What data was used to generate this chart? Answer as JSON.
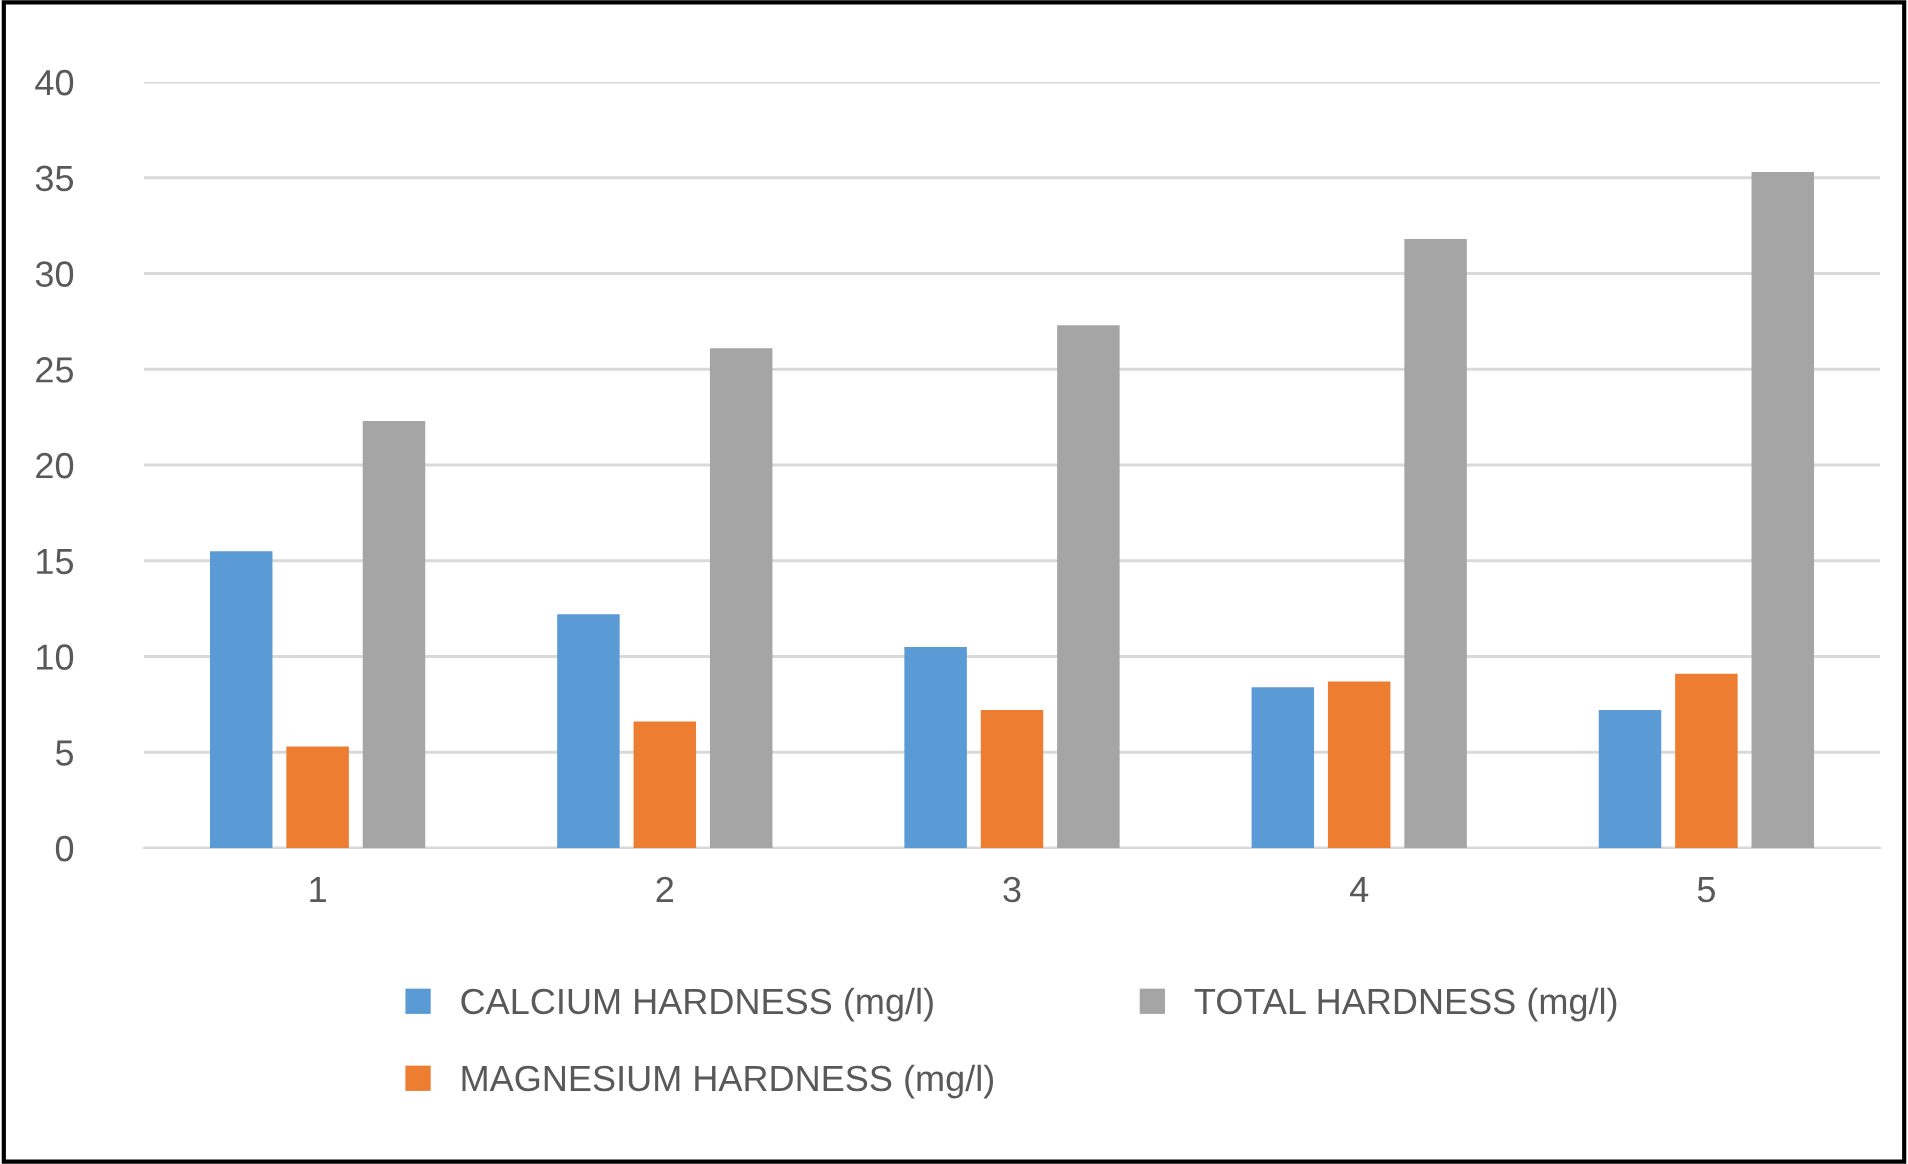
{
  "chart_data": {
    "type": "bar",
    "categories": [
      "1",
      "2",
      "3",
      "4",
      "5"
    ],
    "series": [
      {
        "name": "CALCIUM HARDNESS (mg/l)",
        "color": "#5b9bd5",
        "values": [
          15.5,
          12.2,
          10.5,
          8.4,
          7.2
        ]
      },
      {
        "name": "MAGNESIUM HARDNESS (mg/l)",
        "color": "#ed7d31",
        "values": [
          5.3,
          6.6,
          7.2,
          8.7,
          9.1
        ]
      },
      {
        "name": "TOTAL HARDNESS (mg/l)",
        "color": "#a5a5a5",
        "values": [
          22.3,
          26.1,
          27.3,
          31.8,
          35.3
        ]
      }
    ],
    "ylim": [
      0,
      40
    ],
    "yticks": [
      0,
      5,
      10,
      15,
      20,
      25,
      30,
      35,
      40
    ],
    "grid": "y",
    "legend": "bottom"
  }
}
